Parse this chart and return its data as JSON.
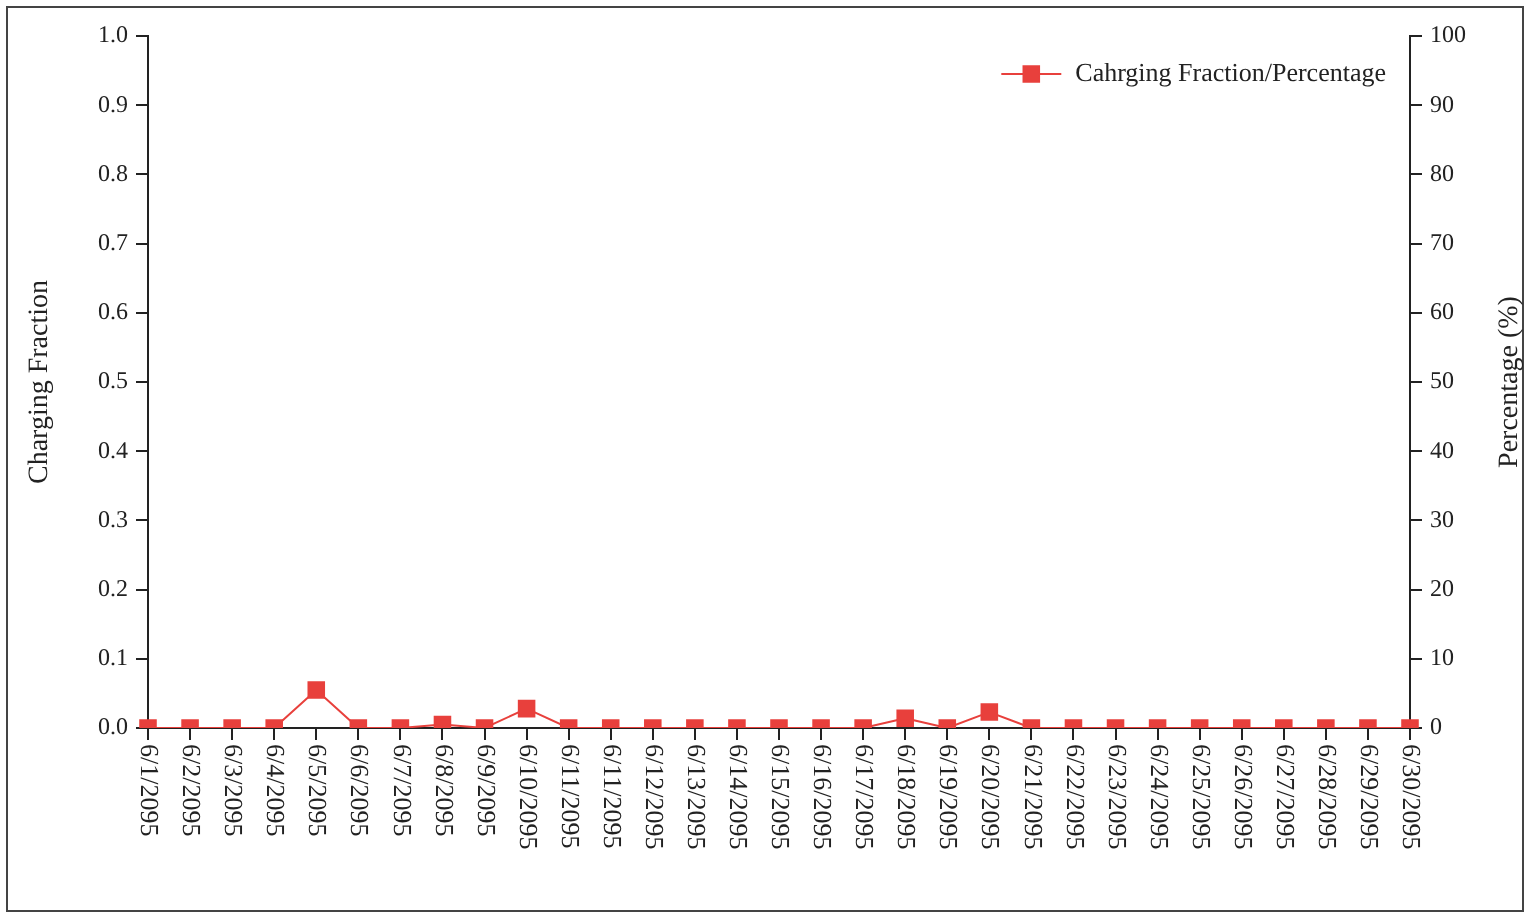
{
  "chart_data": {
    "type": "line",
    "categories": [
      "6/1/2095",
      "6/2/2095",
      "6/3/2095",
      "6/4/2095",
      "6/5/2095",
      "6/6/2095",
      "6/7/2095",
      "6/8/2095",
      "6/9/2095",
      "6/10/2095",
      "6/11/2095",
      "6/11/2095",
      "6/12/2095",
      "6/13/2095",
      "6/14/2095",
      "6/15/2095",
      "6/16/2095",
      "6/17/2095",
      "6/18/2095",
      "6/19/2095",
      "6/20/2095",
      "6/21/2095",
      "6/22/2095",
      "6/23/2095",
      "6/24/2095",
      "6/25/2095",
      "6/26/2095",
      "6/27/2095",
      "6/28/2095",
      "6/29/2095",
      "6/30/2095"
    ],
    "series": [
      {
        "name": "Cahrging Fraction/Percentage",
        "color": "#e8403c",
        "values": [
          0,
          0,
          0,
          0,
          0.055,
          0,
          0,
          0.005,
          0,
          0.028,
          0,
          0,
          0,
          0,
          0,
          0,
          0,
          0,
          0.014,
          0,
          0.023,
          0,
          0,
          0,
          0,
          0,
          0,
          0,
          0,
          0,
          0
        ]
      }
    ],
    "ylabel": "Charging Fraction",
    "y2label": "Percentage (%)",
    "ylim": [
      0,
      1
    ],
    "yticks": [
      {
        "value": 0,
        "label": "0.0"
      },
      0.1,
      0.2,
      0.3,
      0.4,
      0.5,
      0.6,
      0.7,
      0.8,
      0.9,
      {
        "value": 1,
        "label": "1.0"
      }
    ],
    "y2lim": [
      0,
      100
    ],
    "y2ticks": [
      0,
      10,
      20,
      30,
      40,
      50,
      60,
      70,
      80,
      90,
      100
    ],
    "legend": "top right",
    "marker": "square",
    "line_style": "solid",
    "grid": false
  }
}
